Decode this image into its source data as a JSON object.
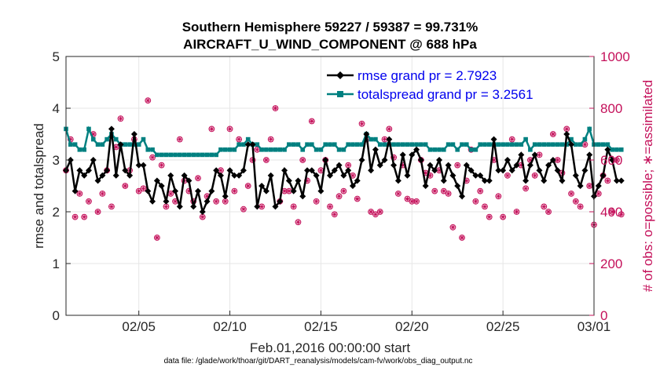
{
  "colors": {
    "rmse": "#000000",
    "spread": "#008080",
    "obs": "#c4105a",
    "legend_text": "#0000ee",
    "grid": "#e6e6e6",
    "axis": "#262626"
  },
  "chart_data": {
    "type": "line",
    "title_line1": "Southern Hemisphere 59227 / 59387 = 99.731%",
    "title_line2": "AIRCRAFT_U_WIND_COMPONENT @ 688 hPa",
    "xlabel": "Feb.01,2016 00:00:00 start",
    "ylabel_left": "rmse and totalspread",
    "ylabel_right": "# of obs: o=possible; ∗=assimilated",
    "source": "data file: /glade/work/thoar/git/DART_reanalysis/models/cam-fv/work/obs_diag_output.nc",
    "xlim": [
      1,
      30
    ],
    "ylim_left": [
      0,
      5
    ],
    "ylim_right": [
      0,
      1000
    ],
    "x_ticks": [
      {
        "x": 5,
        "label": "02/05"
      },
      {
        "x": 10,
        "label": "02/10"
      },
      {
        "x": 15,
        "label": "02/15"
      },
      {
        "x": 20,
        "label": "02/20"
      },
      {
        "x": 25,
        "label": "02/25"
      },
      {
        "x": 30,
        "label": "03/01"
      }
    ],
    "y_ticks_left": [
      "0",
      "1",
      "2",
      "3",
      "4",
      "5"
    ],
    "y_ticks_right": [
      "0",
      "200",
      "400",
      "600",
      "800",
      "1000"
    ],
    "legend": [
      {
        "name": "rmse grand pr = 2.7923",
        "key": "rmse"
      },
      {
        "name": "totalspread grand pr = 3.2561",
        "key": "spread"
      }
    ],
    "x_start": 1.0,
    "x_step": 0.25,
    "series": [
      {
        "name": "rmse",
        "values": [
          2.8,
          3.0,
          2.4,
          2.8,
          2.7,
          2.8,
          3.0,
          2.6,
          2.7,
          2.8,
          3.6,
          2.7,
          3.3,
          2.8,
          2.7,
          3.5,
          2.9,
          2.9,
          2.4,
          2.2,
          2.6,
          2.5,
          2.2,
          2.7,
          2.4,
          2.1,
          2.7,
          2.6,
          2.1,
          2.4,
          2.0,
          2.2,
          2.4,
          2.8,
          2.7,
          2.3,
          2.8,
          2.7,
          2.7,
          2.8,
          3.3,
          3.3,
          2.1,
          2.5,
          2.4,
          2.7,
          2.1,
          2.2,
          2.8,
          2.6,
          2.4,
          2.6,
          2.3,
          2.8,
          2.8,
          2.7,
          2.4,
          3.0,
          2.7,
          2.8,
          2.9,
          2.7,
          2.8,
          2.5,
          2.6,
          3.0,
          3.5,
          2.8,
          3.2,
          2.9,
          3.0,
          3.4,
          2.9,
          2.6,
          3.1,
          2.7,
          3.1,
          3.2,
          3.0,
          2.5,
          2.9,
          2.8,
          3.0,
          2.6,
          2.9,
          2.7,
          2.5,
          2.3,
          2.9,
          2.8,
          2.7,
          2.7,
          2.6,
          2.6,
          3.4,
          2.8,
          2.8,
          3.0,
          2.8,
          2.9,
          3.1,
          2.6,
          2.9,
          3.1,
          2.8,
          2.6,
          2.9,
          3.0,
          2.8,
          2.6,
          3.5,
          3.3,
          2.7,
          2.5,
          2.8,
          3.1,
          2.3,
          2.5,
          2.7,
          3.2,
          3.0,
          2.6,
          2.6
        ],
        "marker": "diamond"
      },
      {
        "name": "totalspread",
        "values": [
          3.6,
          3.3,
          3.3,
          3.2,
          3.2,
          3.6,
          3.4,
          3.3,
          3.3,
          3.4,
          3.5,
          3.4,
          3.3,
          3.3,
          3.3,
          3.3,
          3.3,
          3.4,
          3.2,
          3.2,
          3.1,
          3.1,
          3.1,
          3.1,
          3.1,
          3.1,
          3.1,
          3.1,
          3.1,
          3.1,
          3.1,
          3.1,
          3.1,
          3.1,
          3.2,
          3.2,
          3.2,
          3.2,
          3.3,
          3.3,
          3.4,
          3.3,
          3.3,
          3.2,
          3.2,
          3.2,
          3.2,
          3.2,
          3.2,
          3.3,
          3.3,
          3.3,
          3.2,
          3.3,
          3.3,
          3.2,
          3.2,
          3.3,
          3.3,
          3.3,
          3.2,
          3.2,
          3.3,
          3.3,
          3.3,
          3.3,
          3.5,
          3.4,
          3.4,
          3.3,
          3.3,
          3.3,
          3.3,
          3.3,
          3.3,
          3.3,
          3.3,
          3.3,
          3.3,
          3.3,
          3.2,
          3.2,
          3.2,
          3.2,
          3.3,
          3.3,
          3.2,
          3.3,
          3.3,
          3.2,
          3.2,
          3.3,
          3.3,
          3.3,
          3.3,
          3.3,
          3.3,
          3.3,
          3.3,
          3.3,
          3.3,
          3.4,
          3.2,
          3.3,
          3.3,
          3.3,
          3.3,
          3.3,
          3.3,
          3.3,
          3.3,
          3.4,
          3.3,
          3.3,
          3.4,
          3.6,
          3.3,
          3.3,
          3.3,
          3.3,
          3.2,
          3.2,
          3.2
        ],
        "marker": "square"
      },
      {
        "name": "obs_count",
        "values": [
          560,
          680,
          380,
          470,
          380,
          440,
          700,
          400,
          470,
          560,
          420,
          650,
          760,
          500,
          560,
          680,
          480,
          490,
          830,
          610,
          300,
          580,
          420,
          470,
          440,
          680,
          520,
          480,
          440,
          530,
          380,
          460,
          720,
          440,
          560,
          440,
          720,
          480,
          680,
          410,
          500,
          600,
          640,
          420,
          600,
          680,
          800,
          440,
          480,
          480,
          420,
          360,
          600,
          520,
          750,
          440,
          560,
          600,
          420,
          390,
          460,
          480,
          580,
          540,
          450,
          740,
          680,
          400,
          390,
          400,
          680,
          720,
          610,
          470,
          580,
          450,
          440,
          440,
          600,
          550,
          540,
          480,
          560,
          480,
          470,
          340,
          580,
          300,
          520,
          640,
          440,
          480,
          420,
          380,
          600,
          460,
          380,
          540,
          680,
          400,
          580,
          490,
          600,
          540,
          620,
          420,
          400,
          700,
          600,
          550,
          720,
          470,
          440,
          420,
          660,
          500,
          350,
          470,
          540,
          520,
          400,
          600,
          390
        ],
        "marker": "circle-star"
      }
    ]
  }
}
